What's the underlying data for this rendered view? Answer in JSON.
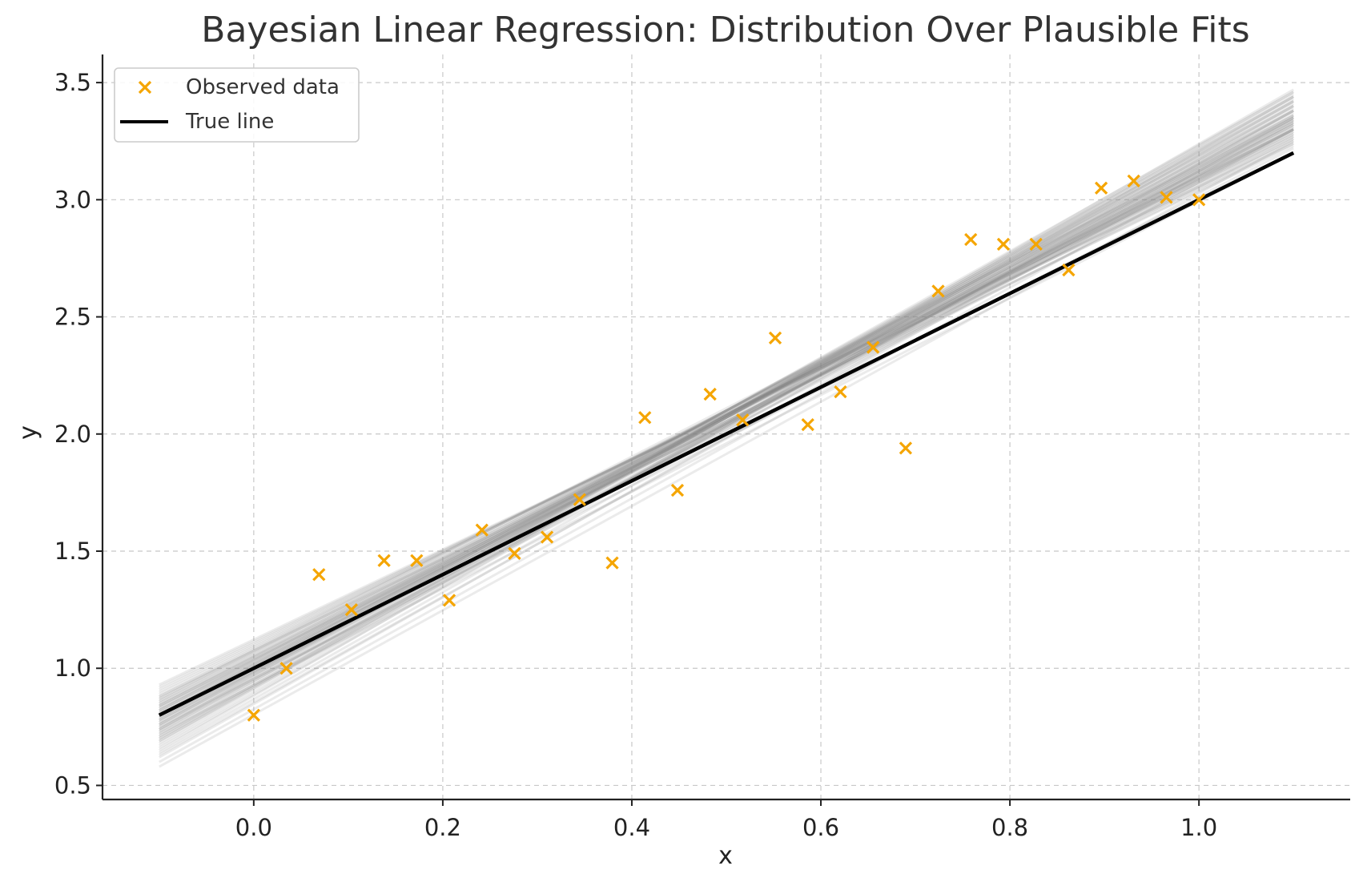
{
  "chart_data": {
    "type": "scatter",
    "title": "Bayesian Linear Regression: Distribution Over Plausible Fits",
    "xlabel": "x",
    "ylabel": "y",
    "xlim": [
      -0.16,
      1.16
    ],
    "ylim": [
      0.44,
      3.62
    ],
    "x_ticks": [
      0.0,
      0.2,
      0.4,
      0.6,
      0.8,
      1.0
    ],
    "x_tick_labels": [
      "0.0",
      "0.2",
      "0.4",
      "0.6",
      "0.8",
      "1.0"
    ],
    "y_ticks": [
      0.5,
      1.0,
      1.5,
      2.0,
      2.5,
      3.0,
      3.5
    ],
    "y_tick_labels": [
      "0.5",
      "1.0",
      "1.5",
      "2.0",
      "2.5",
      "3.0",
      "3.5"
    ],
    "grid": true,
    "legend": {
      "position": "top-left",
      "entries": [
        "Observed data",
        "True line"
      ]
    },
    "colors": {
      "observed": "#f5a500",
      "true_line": "#000000",
      "posterior_samples": "#808080"
    },
    "series": [
      {
        "name": "Observed data",
        "kind": "scatter",
        "marker": "x",
        "x": [
          0.0,
          0.0345,
          0.069,
          0.1034,
          0.1379,
          0.1724,
          0.2069,
          0.2414,
          0.2759,
          0.3103,
          0.3448,
          0.3793,
          0.4138,
          0.4483,
          0.4828,
          0.5172,
          0.5517,
          0.5862,
          0.6207,
          0.6552,
          0.6897,
          0.7241,
          0.7586,
          0.7931,
          0.8276,
          0.8621,
          0.8966,
          0.931,
          0.9655,
          1.0
        ],
        "y": [
          0.8,
          1.0,
          1.4,
          1.25,
          1.46,
          1.46,
          1.29,
          1.59,
          1.49,
          1.56,
          1.72,
          1.45,
          2.07,
          1.76,
          2.17,
          2.06,
          2.41,
          2.04,
          2.18,
          2.37,
          1.94,
          2.61,
          2.83,
          2.81,
          2.81,
          2.7,
          3.05,
          3.08,
          3.01,
          3.0
        ]
      },
      {
        "name": "True line",
        "kind": "line",
        "x": [
          -0.1,
          1.1
        ],
        "y": [
          0.8,
          3.2
        ]
      },
      {
        "kind": "posterior_samples",
        "x_range": [
          -0.1,
          1.1
        ],
        "samples": [
          [
            -0.1,
            0.88,
            1.1,
            3.32
          ],
          [
            -0.1,
            0.86,
            1.1,
            3.34
          ],
          [
            -0.1,
            0.84,
            1.1,
            3.36
          ],
          [
            -0.1,
            0.82,
            1.1,
            3.38
          ],
          [
            -0.1,
            0.8,
            1.1,
            3.4
          ],
          [
            -0.1,
            0.78,
            1.1,
            3.42
          ],
          [
            -0.1,
            0.76,
            1.1,
            3.44
          ],
          [
            -0.1,
            0.74,
            1.1,
            3.46
          ],
          [
            -0.1,
            0.9,
            1.1,
            3.28
          ],
          [
            -0.1,
            0.92,
            1.1,
            3.25
          ],
          [
            -0.1,
            0.87,
            1.1,
            3.3
          ],
          [
            -0.1,
            0.85,
            1.1,
            3.31
          ],
          [
            -0.1,
            0.83,
            1.1,
            3.33
          ],
          [
            -0.1,
            0.81,
            1.1,
            3.35
          ],
          [
            -0.1,
            0.79,
            1.1,
            3.37
          ],
          [
            -0.1,
            0.77,
            1.1,
            3.39
          ],
          [
            -0.1,
            0.75,
            1.1,
            3.41
          ],
          [
            -0.1,
            0.73,
            1.1,
            3.43
          ],
          [
            -0.1,
            0.71,
            1.1,
            3.45
          ],
          [
            -0.1,
            0.69,
            1.1,
            3.47
          ],
          [
            -0.1,
            0.86,
            1.1,
            3.29
          ],
          [
            -0.1,
            0.84,
            1.1,
            3.3
          ],
          [
            -0.1,
            0.82,
            1.1,
            3.32
          ],
          [
            -0.1,
            0.8,
            1.1,
            3.34
          ],
          [
            -0.1,
            0.78,
            1.1,
            3.36
          ],
          [
            -0.1,
            0.76,
            1.1,
            3.38
          ],
          [
            -0.1,
            0.74,
            1.1,
            3.4
          ],
          [
            -0.1,
            0.72,
            1.1,
            3.42
          ],
          [
            -0.1,
            0.7,
            1.1,
            3.44
          ],
          [
            -0.1,
            0.68,
            1.1,
            3.46
          ],
          [
            -0.1,
            0.66,
            1.1,
            3.4
          ],
          [
            -0.1,
            0.64,
            1.1,
            3.38
          ],
          [
            -0.1,
            0.62,
            1.1,
            3.35
          ],
          [
            -0.1,
            0.6,
            1.1,
            3.3
          ],
          [
            -0.1,
            0.58,
            1.1,
            3.25
          ],
          [
            -0.1,
            0.72,
            1.1,
            3.2
          ],
          [
            -0.1,
            0.75,
            1.1,
            3.22
          ],
          [
            -0.1,
            0.78,
            1.1,
            3.26
          ],
          [
            -0.1,
            0.81,
            1.1,
            3.28
          ],
          [
            -0.1,
            0.84,
            1.1,
            3.24
          ],
          [
            -0.1,
            0.7,
            1.1,
            3.36
          ],
          [
            -0.1,
            0.67,
            1.1,
            3.42
          ],
          [
            -0.1,
            0.73,
            1.1,
            3.34
          ],
          [
            -0.1,
            0.76,
            1.1,
            3.32
          ],
          [
            -0.1,
            0.79,
            1.1,
            3.3
          ],
          [
            -0.1,
            0.82,
            1.1,
            3.27
          ],
          [
            -0.1,
            0.85,
            1.1,
            3.26
          ],
          [
            -0.1,
            0.88,
            1.1,
            3.23
          ],
          [
            -0.1,
            0.74,
            1.1,
            3.3
          ],
          [
            -0.1,
            0.77,
            1.1,
            3.33
          ],
          [
            -0.1,
            0.8,
            1.1,
            3.31
          ],
          [
            -0.1,
            0.83,
            1.1,
            3.29
          ],
          [
            -0.1,
            0.69,
            1.1,
            3.38
          ],
          [
            -0.1,
            0.71,
            1.1,
            3.35
          ],
          [
            -0.1,
            0.65,
            1.1,
            3.44
          ],
          [
            -0.1,
            0.63,
            1.1,
            3.33
          ],
          [
            -0.1,
            0.87,
            1.1,
            3.35
          ],
          [
            -0.1,
            0.89,
            1.1,
            3.3
          ],
          [
            -0.1,
            0.91,
            1.1,
            3.27
          ],
          [
            -0.1,
            0.93,
            1.1,
            3.24
          ]
        ]
      }
    ]
  }
}
